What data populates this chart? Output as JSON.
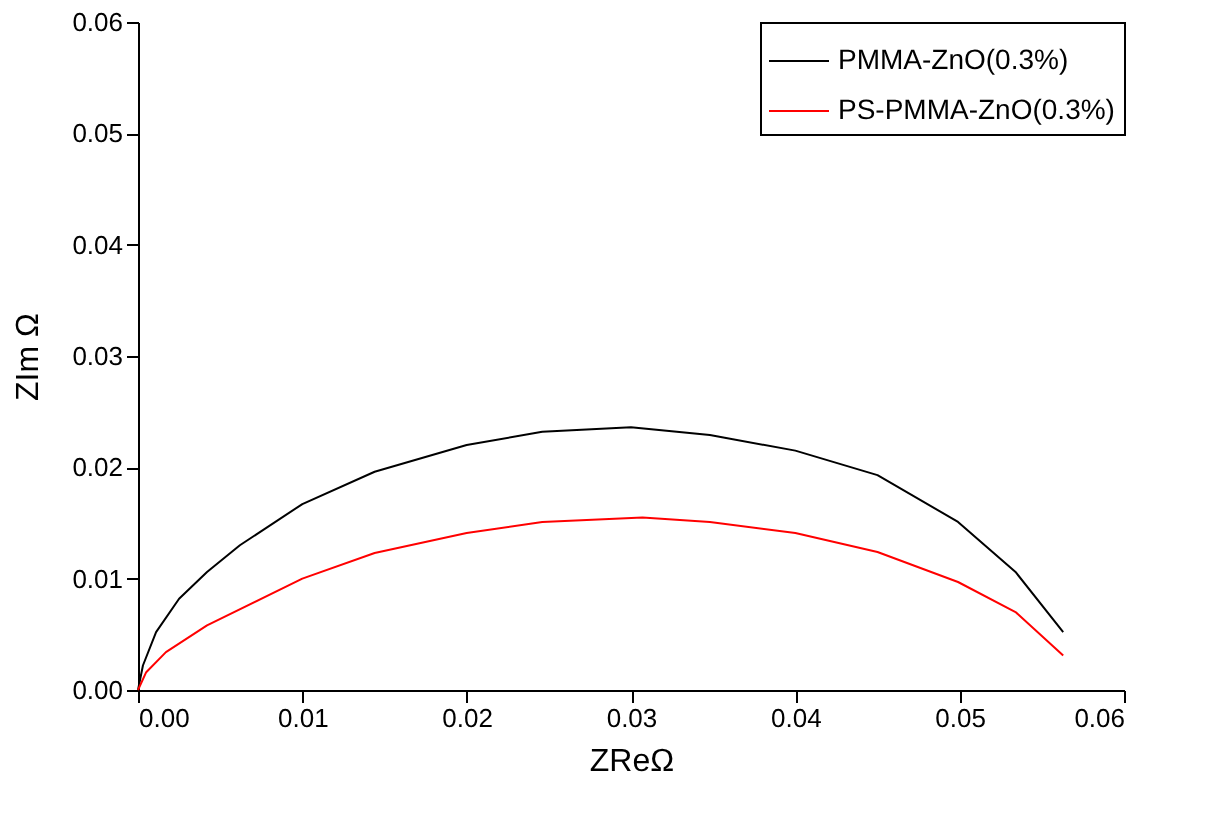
{
  "chart_data": {
    "type": "line",
    "xlabel": "ZReΩ",
    "ylabel": "ZIm Ω",
    "xlim": [
      0,
      0.06
    ],
    "ylim": [
      0,
      0.06
    ],
    "xticks": [
      {
        "value": 0,
        "label": "0.00"
      },
      0.01,
      0.02,
      0.03,
      0.04,
      0.05,
      0.06
    ],
    "yticks": [
      {
        "value": 0,
        "label": "0.00"
      },
      0.01,
      0.02,
      0.03,
      0.04,
      0.05,
      0.06
    ],
    "grid": false,
    "legend": "top right",
    "line_style": "solid",
    "marker": "none",
    "series": [
      {
        "name": "PMMA-ZnO(0.3%)",
        "color": "#000000",
        "x": [
          0,
          0.0003,
          0.0011,
          0.0025,
          0.0042,
          0.0062,
          0.01,
          0.0144,
          0.02,
          0.0246,
          0.03,
          0.0348,
          0.04,
          0.045,
          0.0499,
          0.0534,
          0.0563
        ],
        "values": [
          0,
          0.0022,
          0.0052,
          0.0082,
          0.0106,
          0.013,
          0.0167,
          0.0196,
          0.022,
          0.0232,
          0.0236,
          0.0229,
          0.0215,
          0.0193,
          0.0151,
          0.0106,
          0.0052
        ]
      },
      {
        "name": "PS-PMMA-ZnO(0.3%)",
        "color": "#ff0000",
        "x": [
          0,
          0.0005,
          0.0017,
          0.0042,
          0.01,
          0.0144,
          0.02,
          0.0246,
          0.0307,
          0.0348,
          0.04,
          0.045,
          0.0499,
          0.0534,
          0.0563
        ],
        "values": [
          0,
          0.0016,
          0.0034,
          0.0058,
          0.01,
          0.0123,
          0.0141,
          0.0151,
          0.0155,
          0.0151,
          0.0141,
          0.0124,
          0.0097,
          0.007,
          0.0031
        ]
      }
    ]
  }
}
